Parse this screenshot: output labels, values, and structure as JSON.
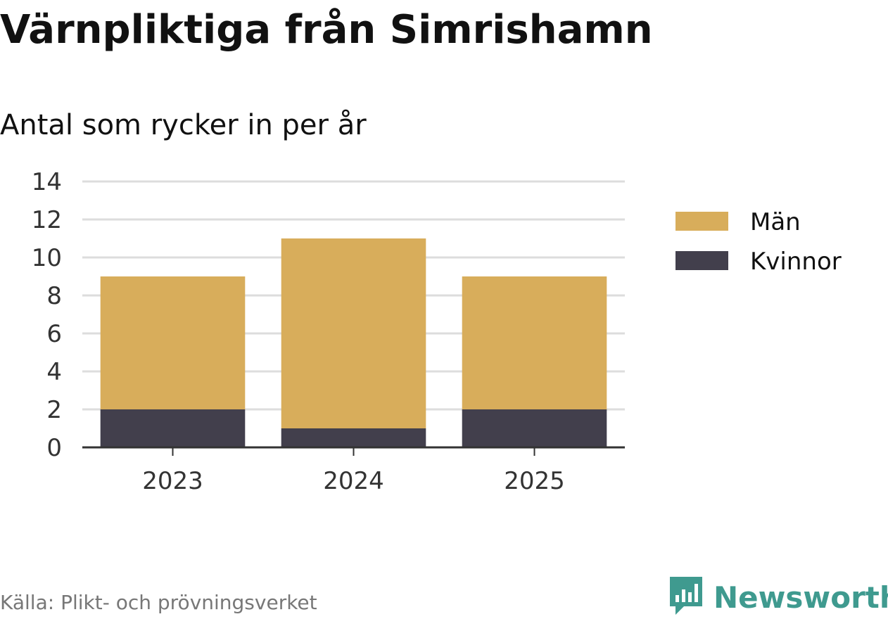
{
  "header": {
    "title": "Värnpliktiga från Simrishamn",
    "subtitle": "Antal som rycker in per år"
  },
  "footer": {
    "source": "Källa: Plikt- och prövningsverket",
    "brand": "Newsworthy",
    "brand_icon": "bar-chart-speech-bubble-icon"
  },
  "colors": {
    "men": "#d8ad5b",
    "women": "#423f4c",
    "grid": "#dddddd",
    "axis": "#333333",
    "brand": "#3f9a8f"
  },
  "chart_data": {
    "type": "bar",
    "stacked": true,
    "categories": [
      "2023",
      "2024",
      "2025"
    ],
    "series": [
      {
        "name": "Kvinnor",
        "values": [
          2,
          1,
          2
        ]
      },
      {
        "name": "Män",
        "values": [
          7,
          10,
          7
        ]
      }
    ],
    "ylim": [
      0,
      14
    ],
    "yticks": [
      0,
      2,
      4,
      6,
      8,
      10,
      12,
      14
    ],
    "grid": true,
    "legend": {
      "placement": "right",
      "entries": [
        "Män",
        "Kvinnor"
      ]
    },
    "title": "Värnpliktiga från Simrishamn",
    "subtitle": "Antal som rycker in per år"
  }
}
